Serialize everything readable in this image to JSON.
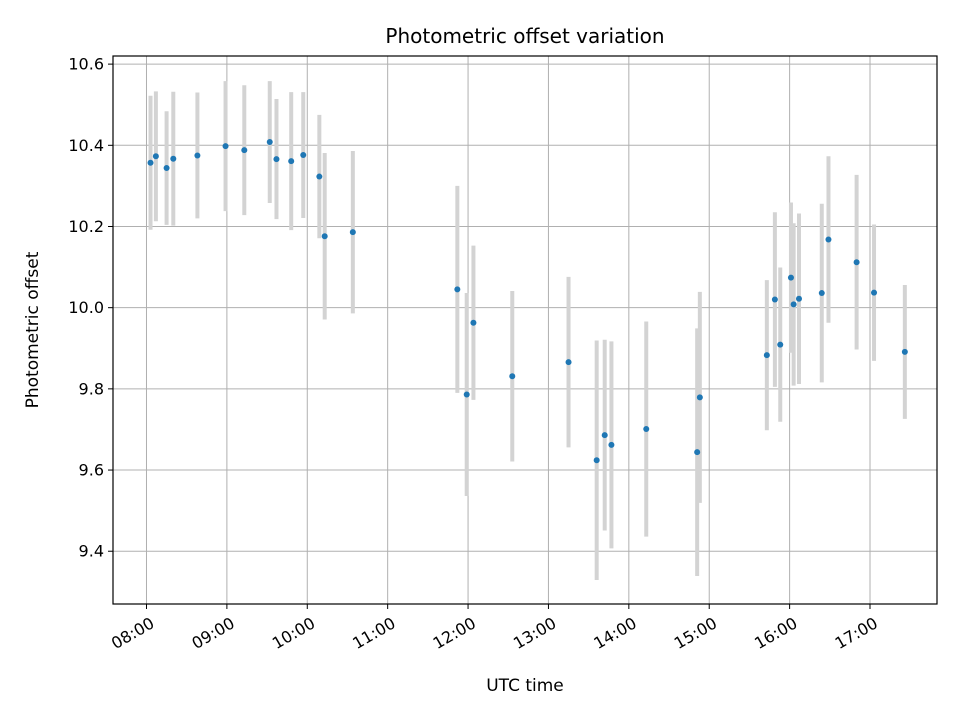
{
  "chart_data": {
    "type": "scatter",
    "title": "Photometric offset variation",
    "xlabel": "UTC time",
    "ylabel": "Photometric offset",
    "x_ticks": [
      "08:00",
      "09:00",
      "10:00",
      "11:00",
      "12:00",
      "13:00",
      "14:00",
      "15:00",
      "16:00",
      "17:00"
    ],
    "y_ticks": [
      "9.4",
      "9.6",
      "9.8",
      "10.0",
      "10.2",
      "10.4",
      "10.6"
    ],
    "xlim": [
      "07:35",
      "17:50"
    ],
    "ylim": [
      9.27,
      10.62
    ],
    "grid": true,
    "marker_color": "#1f77b4",
    "errorbar_color": "#d3d3d3",
    "points": [
      {
        "t": "08:03",
        "y": 10.357,
        "err": 0.165
      },
      {
        "t": "08:07",
        "y": 10.373,
        "err": 0.16
      },
      {
        "t": "08:15",
        "y": 10.344,
        "err": 0.14
      },
      {
        "t": "08:20",
        "y": 10.367,
        "err": 0.165
      },
      {
        "t": "08:38",
        "y": 10.375,
        "err": 0.155
      },
      {
        "t": "08:59",
        "y": 10.398,
        "err": 0.16
      },
      {
        "t": "09:13",
        "y": 10.388,
        "err": 0.16
      },
      {
        "t": "09:32",
        "y": 10.408,
        "err": 0.15
      },
      {
        "t": "09:37",
        "y": 10.366,
        "err": 0.148
      },
      {
        "t": "09:48",
        "y": 10.361,
        "err": 0.17
      },
      {
        "t": "09:57",
        "y": 10.376,
        "err": 0.155
      },
      {
        "t": "10:09",
        "y": 10.323,
        "err": 0.152
      },
      {
        "t": "10:13",
        "y": 10.176,
        "err": 0.205
      },
      {
        "t": "10:34",
        "y": 10.186,
        "err": 0.2
      },
      {
        "t": "11:52",
        "y": 10.045,
        "err": 0.255
      },
      {
        "t": "11:59",
        "y": 9.786,
        "err": 0.25
      },
      {
        "t": "12:04",
        "y": 9.963,
        "err": 0.19
      },
      {
        "t": "12:33",
        "y": 9.831,
        "err": 0.21
      },
      {
        "t": "13:15",
        "y": 9.866,
        "err": 0.21
      },
      {
        "t": "13:36",
        "y": 9.624,
        "err": 0.295
      },
      {
        "t": "13:42",
        "y": 9.686,
        "err": 0.235
      },
      {
        "t": "13:47",
        "y": 9.662,
        "err": 0.255
      },
      {
        "t": "14:13",
        "y": 9.701,
        "err": 0.265
      },
      {
        "t": "14:51",
        "y": 9.644,
        "err": 0.305
      },
      {
        "t": "14:53",
        "y": 9.779,
        "err": 0.26
      },
      {
        "t": "15:43",
        "y": 9.883,
        "err": 0.185
      },
      {
        "t": "15:49",
        "y": 10.02,
        "err": 0.215
      },
      {
        "t": "15:53",
        "y": 9.909,
        "err": 0.19
      },
      {
        "t": "16:01",
        "y": 10.074,
        "err": 0.185
      },
      {
        "t": "16:03",
        "y": 10.008,
        "err": 0.2
      },
      {
        "t": "16:07",
        "y": 10.022,
        "err": 0.21
      },
      {
        "t": "16:24",
        "y": 10.036,
        "err": 0.22
      },
      {
        "t": "16:29",
        "y": 10.168,
        "err": 0.205
      },
      {
        "t": "16:50",
        "y": 10.112,
        "err": 0.215
      },
      {
        "t": "17:03",
        "y": 10.037,
        "err": 0.168
      },
      {
        "t": "17:26",
        "y": 9.891,
        "err": 0.165
      }
    ]
  }
}
